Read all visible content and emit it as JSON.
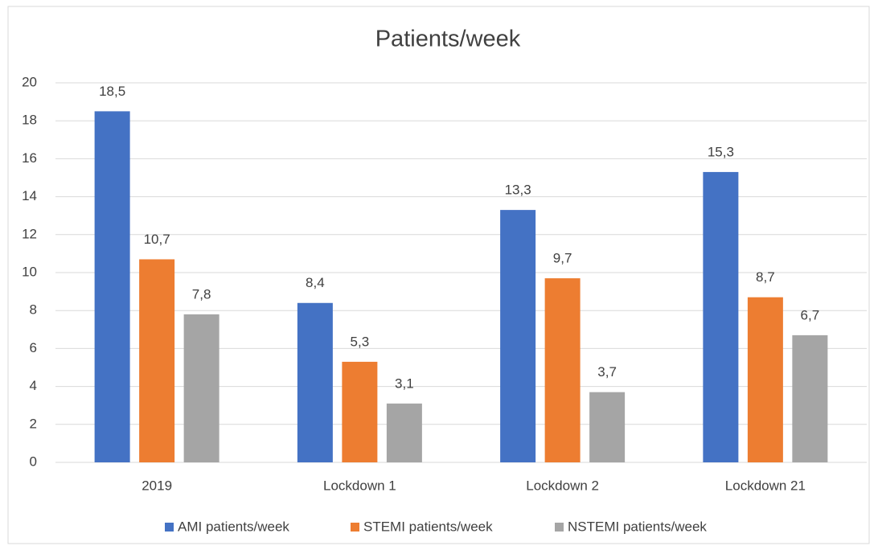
{
  "chart_data": {
    "type": "bar",
    "title": "Patients/week",
    "categories": [
      "2019",
      "Lockdown 1",
      "Lockdown 2",
      "Lockdown 21"
    ],
    "series": [
      {
        "name": "AMI patients/week",
        "color": "#4472c4",
        "values": [
          18.5,
          8.4,
          13.3,
          15.3
        ],
        "value_labels": [
          "18,5",
          "8,4",
          "13,3",
          "15,3"
        ]
      },
      {
        "name": "STEMI patients/week",
        "color": "#ed7d31",
        "values": [
          10.7,
          5.3,
          9.7,
          8.7
        ],
        "value_labels": [
          "10,7",
          "5,3",
          "9,7",
          "8,7"
        ]
      },
      {
        "name": "NSTEMI patients/week",
        "color": "#a5a5a5",
        "values": [
          7.8,
          3.1,
          3.7,
          6.7
        ],
        "value_labels": [
          "7,8",
          "3,1",
          "3,7",
          "6,7"
        ]
      }
    ],
    "ylim": [
      0,
      20
    ],
    "yticks": [
      0,
      2,
      4,
      6,
      8,
      10,
      12,
      14,
      16,
      18,
      20
    ],
    "grid": true,
    "legend": "bottom"
  }
}
